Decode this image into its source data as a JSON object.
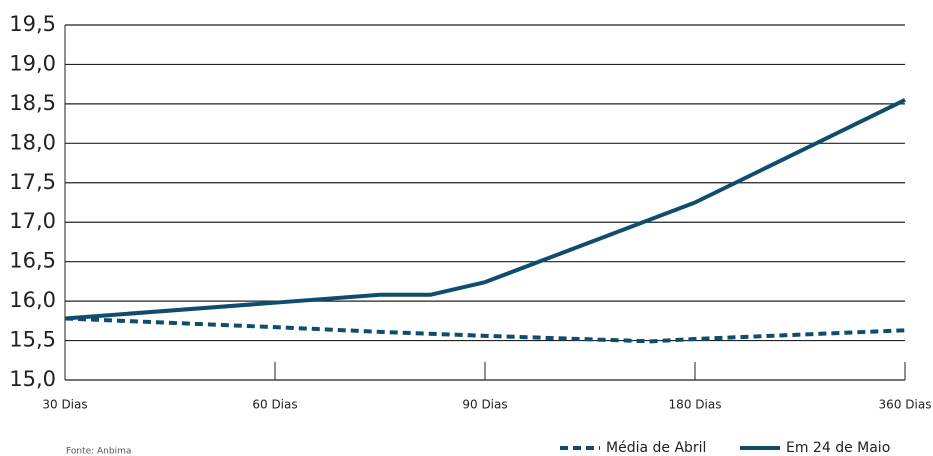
{
  "chart_data": {
    "type": "line",
    "source": "Fonte: Anbima",
    "xlim": [
      0,
      4
    ],
    "xticks": [
      {
        "value": 0,
        "label": "30 Dias"
      },
      {
        "value": 1,
        "label": "60 Dias"
      },
      {
        "value": 2,
        "label": "90 Dias"
      },
      {
        "value": 3,
        "label": "180 Dias"
      },
      {
        "value": 4,
        "label": "360 Dias"
      }
    ],
    "ylim": [
      15.0,
      19.5
    ],
    "yticks": [
      {
        "value": 15.0,
        "label": "15,0"
      },
      {
        "value": 15.5,
        "label": "15,5"
      },
      {
        "value": 16.0,
        "label": "16,0"
      },
      {
        "value": 16.5,
        "label": "16,5"
      },
      {
        "value": 17.0,
        "label": "17,0"
      },
      {
        "value": 17.5,
        "label": "17,5"
      },
      {
        "value": 18.0,
        "label": "18,0"
      },
      {
        "value": 18.5,
        "label": "18,5"
      },
      {
        "value": 19.0,
        "label": "19,0"
      },
      {
        "value": 19.5,
        "label": "19,5"
      }
    ],
    "grid": true,
    "legend": "bottom-right",
    "series": [
      {
        "name": "Média de Abril",
        "color": "#0f4c6e",
        "dash": true,
        "x": [
          0,
          1,
          1.5,
          2,
          2.79,
          3,
          4
        ],
        "values": [
          15.78,
          15.67,
          15.61,
          15.56,
          15.49,
          15.52,
          15.63
        ]
      },
      {
        "name": "Em 24 de Maio",
        "color": "#0f4c6e",
        "dash": false,
        "x": [
          0,
          1,
          1.5,
          1.74,
          2,
          3,
          4
        ],
        "values": [
          15.78,
          15.98,
          16.08,
          16.08,
          16.24,
          17.25,
          18.55
        ]
      }
    ]
  }
}
